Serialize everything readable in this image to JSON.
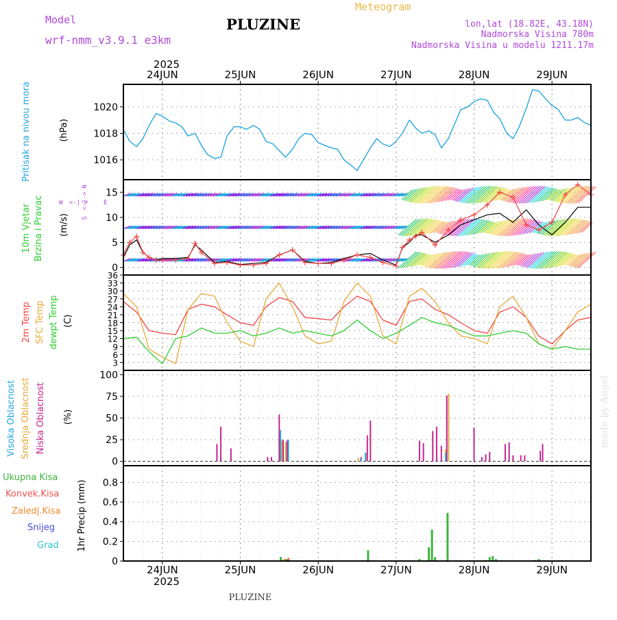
{
  "header": {
    "model_label": "Model",
    "model_name": "wrf-nmm_v3.9.1  e3km",
    "app_title": "Meteogram",
    "station": "PLUZINE",
    "lonlat": "lon,lat (18.82E, 43.18N)",
    "altitude": "Nadmorska Visina 780m",
    "model_altitude": "Nadmorska Visina u modelu 1211.17m",
    "footer_station": "PLUZINE",
    "watermark": "made by Angel",
    "colors": {
      "model": "#b049d8",
      "title": "#000000",
      "meteogram": "#e8b84a"
    }
  },
  "x_axis": {
    "year": "2025",
    "day_labels": [
      "24JUN",
      "25JUN",
      "26JUN",
      "27JUN",
      "28JUN",
      "29JUN"
    ],
    "start_offset_days": -0.5,
    "end_offset_days": 5.5
  },
  "chart_data": [
    {
      "type": "line",
      "name": "pressure",
      "ylabel_side": "Pritisak na nivou mora",
      "units": "(hPa)",
      "ylim": [
        1014.5,
        1021.7
      ],
      "yticks": [
        1016,
        1018,
        1020
      ],
      "series": [
        {
          "name": "MSLP",
          "color": "#23a6e0",
          "x": [
            -0.5,
            -0.42,
            -0.33,
            -0.25,
            -0.17,
            -0.08,
            0.0,
            0.1,
            0.17,
            0.25,
            0.33,
            0.42,
            0.5,
            0.58,
            0.67,
            0.75,
            0.83,
            0.92,
            1.0,
            1.08,
            1.17,
            1.25,
            1.33,
            1.42,
            1.5,
            1.58,
            1.67,
            1.75,
            1.83,
            1.92,
            2.0,
            2.08,
            2.17,
            2.25,
            2.33,
            2.42,
            2.5,
            2.58,
            2.67,
            2.75,
            2.83,
            2.92,
            3.0,
            3.08,
            3.17,
            3.25,
            3.33,
            3.42,
            3.5,
            3.58,
            3.67,
            3.75,
            3.83,
            3.92,
            4.0,
            4.08,
            4.17,
            4.25,
            4.33,
            4.42,
            4.5,
            4.58,
            4.67,
            4.75,
            4.83,
            4.92,
            5.0,
            5.08,
            5.17,
            5.25,
            5.33,
            5.42,
            5.5
          ],
          "values": [
            1018.3,
            1017.4,
            1017.0,
            1017.6,
            1018.6,
            1019.5,
            1019.3,
            1018.9,
            1018.8,
            1018.5,
            1017.8,
            1018.0,
            1017.1,
            1016.4,
            1016.1,
            1016.2,
            1017.8,
            1018.5,
            1018.5,
            1018.3,
            1018.6,
            1018.3,
            1017.4,
            1017.2,
            1016.7,
            1016.2,
            1016.8,
            1017.6,
            1018.0,
            1017.9,
            1017.3,
            1017.1,
            1016.9,
            1016.8,
            1016.0,
            1015.6,
            1015.2,
            1016.0,
            1016.9,
            1017.6,
            1017.2,
            1017.0,
            1017.4,
            1018.0,
            1019.0,
            1018.4,
            1018.0,
            1018.2,
            1017.9,
            1016.9,
            1017.6,
            1018.7,
            1019.8,
            1020.0,
            1020.4,
            1020.6,
            1020.5,
            1019.6,
            1019.1,
            1018.0,
            1017.6,
            1018.5,
            1019.9,
            1021.3,
            1021.2,
            1020.6,
            1020.1,
            1019.8,
            1019.0,
            1019.0,
            1019.2,
            1018.8,
            1018.6
          ]
        }
      ]
    },
    {
      "type": "line",
      "name": "wind",
      "ylabel_side_1": "10m Vjetar",
      "ylabel_side_2": "Brzina i Pravac",
      "units": "(m/s)",
      "compass": {
        "n": "N",
        "s": "S",
        "w": "W",
        "e": "E",
        "arrow": "<-|->"
      },
      "ylim": [
        -1.5,
        17.5
      ],
      "yticks": [
        0,
        5,
        10,
        15
      ],
      "rows": [
        {
          "level": 14.5,
          "label": "upper direction row"
        },
        {
          "level": 8,
          "label": "middle direction row"
        },
        {
          "level": 1.5,
          "label": "lower direction row"
        }
      ],
      "series": [
        {
          "name": "speed",
          "color": "#000000",
          "x": [
            -0.5,
            -0.42,
            -0.33,
            -0.25,
            -0.17,
            -0.08,
            0.0,
            0.17,
            0.33,
            0.42,
            0.5,
            0.67,
            0.83,
            1.0,
            1.17,
            1.33,
            1.5,
            1.67,
            1.83,
            2.0,
            2.17,
            2.33,
            2.5,
            2.67,
            2.83,
            3.0,
            3.08,
            3.17,
            3.25,
            3.33,
            3.5,
            3.67,
            3.83,
            4.0,
            4.17,
            4.33,
            4.5,
            4.67,
            4.83,
            5.0,
            5.17,
            5.33,
            5.5
          ],
          "values": [
            2.0,
            4.5,
            5.5,
            3.0,
            2.0,
            1.5,
            1.8,
            1.8,
            2.0,
            4.5,
            3.5,
            1.0,
            1.2,
            0.6,
            0.8,
            1.0,
            2.5,
            3.5,
            1.2,
            0.8,
            1.0,
            1.8,
            2.5,
            2.8,
            1.5,
            0.5,
            4.0,
            5.0,
            6.5,
            6.5,
            5.0,
            6.5,
            8.5,
            9.5,
            10.5,
            10.8,
            9.0,
            11.5,
            8.5,
            6.5,
            9.0,
            12.0,
            12.0
          ]
        },
        {
          "name": "gust",
          "color": "#ef4444",
          "x": [
            -0.5,
            -0.42,
            -0.33,
            -0.25,
            -0.17,
            -0.08,
            0.0,
            0.17,
            0.33,
            0.42,
            0.5,
            0.67,
            0.83,
            1.0,
            1.17,
            1.33,
            1.5,
            1.67,
            1.83,
            2.0,
            2.17,
            2.33,
            2.5,
            2.67,
            2.83,
            3.0,
            3.08,
            3.17,
            3.25,
            3.33,
            3.5,
            3.67,
            3.83,
            4.0,
            4.17,
            4.33,
            4.5,
            4.67,
            4.83,
            5.0,
            5.17,
            5.33,
            5.5
          ],
          "values": [
            2.5,
            5.0,
            6.2,
            3.0,
            2.0,
            1.5,
            1.5,
            1.5,
            1.8,
            4.8,
            3.0,
            0.8,
            1.0,
            0.5,
            0.5,
            0.8,
            2.5,
            3.5,
            1.0,
            0.8,
            0.8,
            1.5,
            2.5,
            2.0,
            1.0,
            0.3,
            4.0,
            5.5,
            6.2,
            7.0,
            4.5,
            7.5,
            9.5,
            10.5,
            12.5,
            15.0,
            14.0,
            8.5,
            7.5,
            9.0,
            14.5,
            16.5,
            14.5
          ]
        }
      ]
    },
    {
      "type": "line",
      "name": "temperature",
      "ylabel_side_1": "2m Temp",
      "ylabel_side_2": "SFC Temp",
      "ylabel_side_3": "dewpt Temp",
      "units": "(C)",
      "ylim": [
        0,
        36
      ],
      "yticks": [
        3,
        6,
        9,
        12,
        15,
        18,
        21,
        24,
        27,
        30,
        33,
        36
      ],
      "series": [
        {
          "name": "2m Temp",
          "color": "#ef4444",
          "x": [
            -0.5,
            -0.33,
            -0.17,
            0.0,
            0.17,
            0.33,
            0.5,
            0.67,
            0.83,
            1.0,
            1.17,
            1.33,
            1.5,
            1.67,
            1.83,
            2.0,
            2.17,
            2.33,
            2.5,
            2.67,
            2.83,
            3.0,
            3.17,
            3.33,
            3.5,
            3.67,
            3.83,
            4.0,
            4.17,
            4.33,
            4.5,
            4.67,
            4.83,
            5.0,
            5.17,
            5.33,
            5.5
          ],
          "values": [
            26,
            22,
            15,
            14,
            13.5,
            23,
            25,
            24,
            21,
            18,
            17,
            24,
            27.5,
            26,
            20,
            19.5,
            19,
            24,
            28,
            26,
            19,
            17,
            26,
            27,
            23,
            21,
            18,
            15,
            14,
            22,
            24,
            20,
            13,
            10,
            15,
            19,
            20
          ]
        },
        {
          "name": "SFC Temp",
          "color": "#e8a838",
          "x": [
            -0.5,
            -0.33,
            -0.17,
            0.0,
            0.17,
            0.33,
            0.5,
            0.67,
            0.83,
            1.0,
            1.17,
            1.33,
            1.5,
            1.67,
            1.83,
            2.0,
            2.17,
            2.33,
            2.5,
            2.67,
            2.83,
            3.0,
            3.17,
            3.33,
            3.5,
            3.67,
            3.83,
            4.0,
            4.17,
            4.33,
            4.5,
            4.67,
            4.83,
            5.0,
            5.17,
            5.33,
            5.5
          ],
          "values": [
            29,
            24,
            8,
            5,
            2.5,
            23,
            29,
            28,
            18,
            11,
            9,
            27,
            33,
            24,
            13,
            10,
            11,
            26,
            33,
            28,
            13,
            10,
            28,
            31,
            26,
            18,
            13,
            12,
            10,
            24,
            28,
            20,
            10,
            8,
            15,
            22,
            25
          ]
        },
        {
          "name": "dewpt Temp",
          "color": "#2ecc2e",
          "x": [
            -0.5,
            -0.33,
            -0.17,
            0.0,
            0.17,
            0.33,
            0.5,
            0.67,
            0.83,
            1.0,
            1.17,
            1.33,
            1.5,
            1.67,
            1.83,
            2.0,
            2.17,
            2.33,
            2.5,
            2.67,
            2.83,
            3.0,
            3.17,
            3.33,
            3.5,
            3.67,
            3.83,
            4.0,
            4.17,
            4.33,
            4.5,
            4.67,
            4.83,
            5.0,
            5.17,
            5.33,
            5.5
          ],
          "values": [
            12,
            12.5,
            7,
            2.5,
            12,
            13,
            16,
            14,
            14,
            15,
            13,
            14,
            16,
            14,
            15,
            14,
            13,
            15,
            19,
            15,
            12,
            14,
            17,
            20,
            18,
            17,
            15,
            13,
            13,
            14,
            15,
            14,
            10,
            8,
            9,
            8,
            8
          ]
        }
      ]
    },
    {
      "type": "bar",
      "name": "cloud_cover",
      "ylabel_side_1": "Visoka Oblacnost",
      "ylabel_side_2": "Srednja Oblacnost",
      "ylabel_side_3": "Niska Oblacnost",
      "units": "(%)",
      "ylim": [
        -5,
        105
      ],
      "yticks": [
        0,
        25,
        50,
        75,
        100
      ],
      "series": [
        {
          "name": "Niska Oblacnost",
          "color": "#c2248e",
          "x": [
            0.7,
            0.75,
            0.88,
            1.35,
            1.4,
            1.5,
            1.55,
            1.6,
            2.55,
            2.63,
            2.67,
            3.3,
            3.35,
            3.47,
            3.52,
            3.58,
            3.65,
            4.0,
            4.1,
            4.15,
            4.2,
            4.4,
            4.45,
            4.5,
            4.6,
            4.65,
            4.85,
            4.88
          ],
          "values": [
            20,
            40,
            15,
            5,
            5,
            54,
            25,
            24,
            5,
            30,
            47,
            24,
            21,
            35,
            40,
            18,
            76,
            39,
            5,
            8,
            11,
            20,
            22,
            7,
            7,
            7,
            12,
            20
          ]
        },
        {
          "name": "Srednja Oblacnost",
          "color": "#e8a838",
          "x": [
            1.52,
            1.57,
            2.5,
            2.6,
            3.62,
            3.66
          ],
          "values": [
            24,
            22,
            4,
            10,
            14,
            78
          ]
        },
        {
          "name": "Visoka Oblacnost",
          "color": "#23a6e0",
          "x": [
            1.49,
            1.59,
            2.52,
            2.58,
            3.61
          ],
          "values": [
            36,
            25,
            3,
            10,
            10
          ]
        }
      ]
    },
    {
      "type": "bar",
      "name": "precipitation",
      "ylabel_side_1": "Ukupna  Kisa",
      "ylabel_side_2": "Konvek.Kisa",
      "ylabel_side_3": "Zaledj.Kisa",
      "ylabel_side_4": "Snijeg",
      "ylabel_side_5": "Grad",
      "units": "1hr Precip (mm)",
      "ylim": [
        0,
        0.97
      ],
      "yticks": [
        0,
        0.2,
        0.4,
        0.6,
        0.8
      ],
      "series": [
        {
          "name": "Ukupna Kisa",
          "color": "#3db43d",
          "x": [
            1.52,
            1.59,
            2.64,
            3.3,
            3.42,
            3.46,
            3.5,
            3.66,
            4.15,
            4.2,
            4.24,
            4.28,
            4.78,
            4.83
          ],
          "values": [
            0.04,
            0.02,
            0.11,
            0.02,
            0.14,
            0.32,
            0.04,
            0.49,
            0.01,
            0.04,
            0.05,
            0.02,
            0.01,
            0.02
          ]
        },
        {
          "name": "Konvek.Kisa",
          "color": "#f05050",
          "x": [
            1.6
          ],
          "values": [
            0.03
          ]
        },
        {
          "name": "Zaledj.Kisa",
          "color": "#f08a2e",
          "x": [
            1.53
          ],
          "values": [
            0.02
          ]
        }
      ]
    }
  ]
}
